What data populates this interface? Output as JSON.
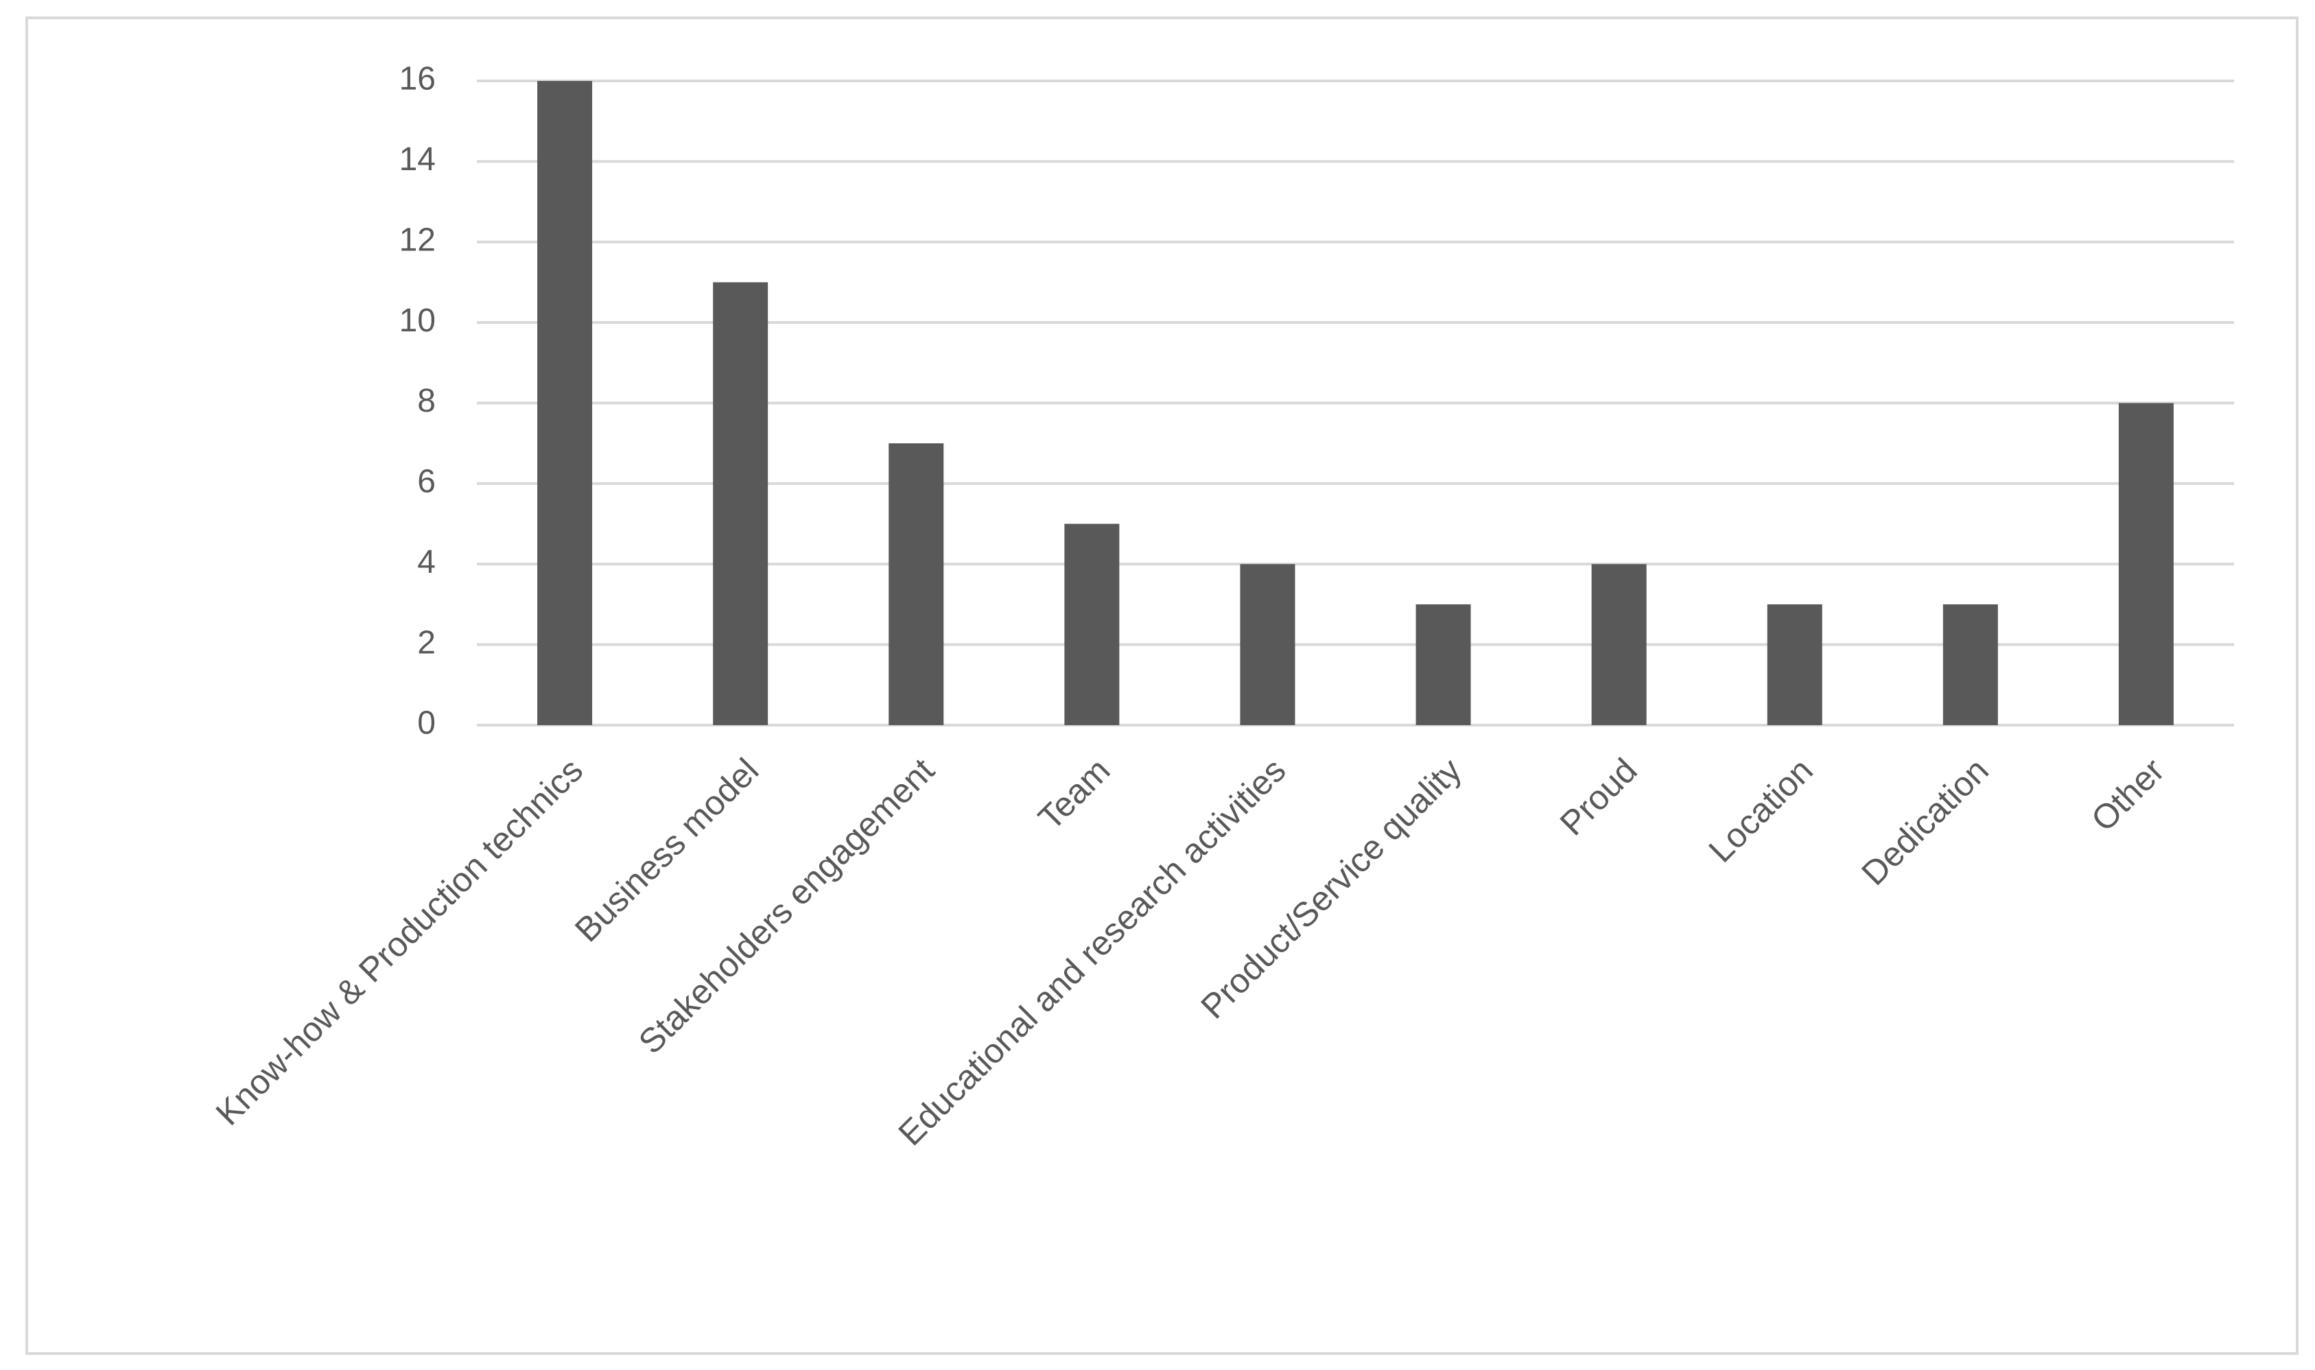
{
  "chart_data": {
    "type": "bar",
    "categories": [
      "Know-how &  Production technics",
      "Business model",
      "Stakeholders engagement",
      "Team",
      "Educational and research activities",
      "Product/Service quality",
      "Proud",
      "Location",
      "Dedication",
      "Other"
    ],
    "values": [
      16,
      11,
      7,
      5,
      4,
      3,
      4,
      3,
      3,
      8
    ],
    "color": "#595959",
    "ylim": [
      0,
      16
    ],
    "yticks": [
      0,
      2,
      4,
      6,
      8,
      10,
      12,
      14,
      16
    ],
    "grid": true
  }
}
